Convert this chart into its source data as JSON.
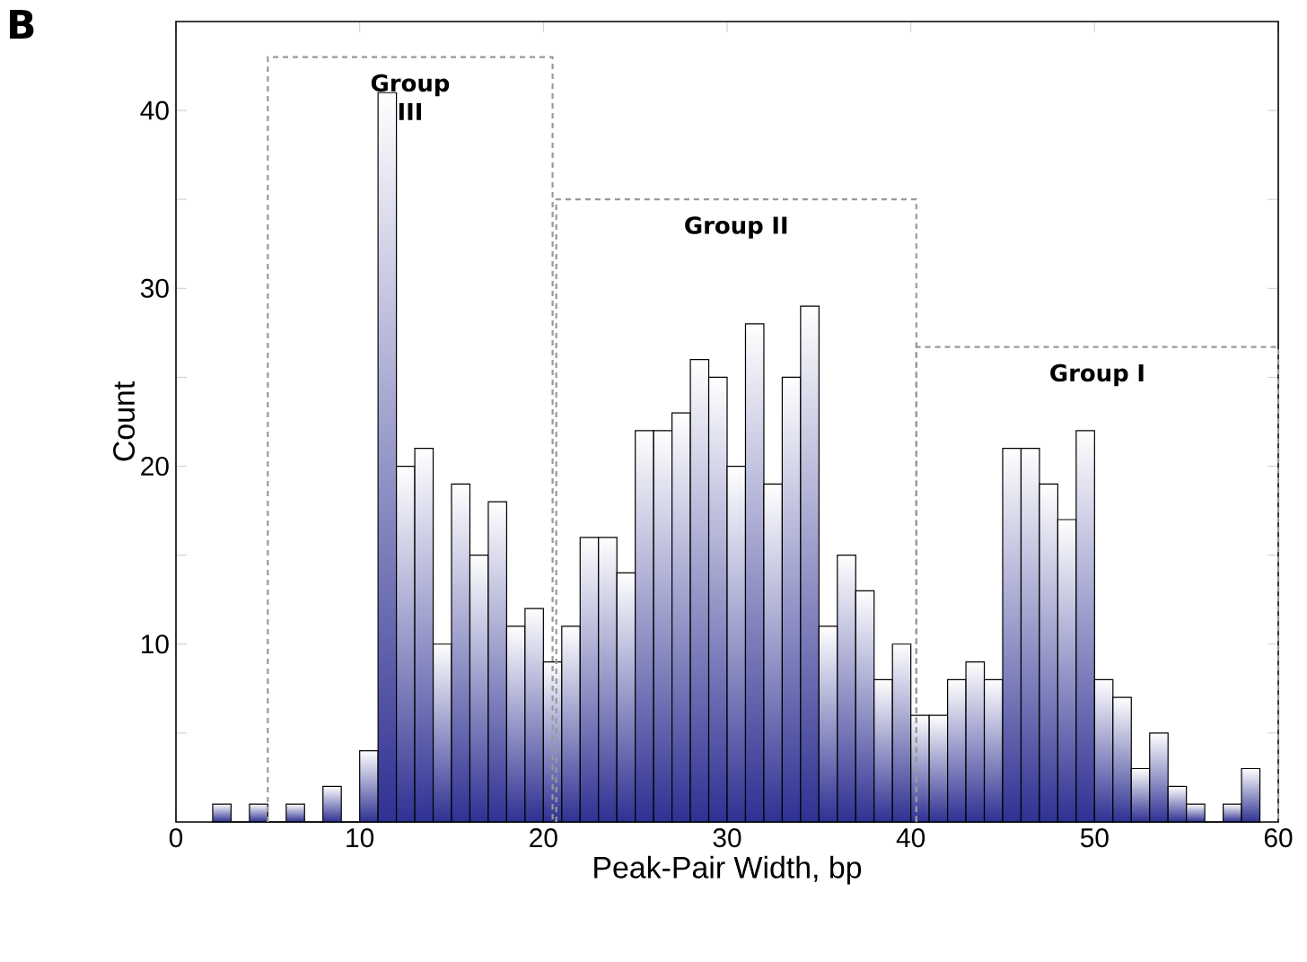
{
  "chart_data": {
    "type": "histogram",
    "xlabel": "Peak-Pair Width, bp",
    "ylabel": "Count",
    "color": "#2e3192",
    "bins": [
      2,
      3,
      4,
      5,
      6,
      7,
      8,
      9,
      10,
      11,
      12,
      13,
      14,
      15,
      16,
      17,
      18,
      19,
      20,
      21,
      22,
      23,
      24,
      25,
      26,
      27,
      28,
      29,
      30,
      31,
      32,
      33,
      34,
      35,
      36,
      37,
      38,
      39,
      40,
      41,
      42,
      43,
      44,
      45,
      46,
      47,
      48,
      49,
      50,
      51,
      52,
      53,
      54,
      55,
      56,
      57,
      58,
      59
    ],
    "values": [
      1,
      0,
      1,
      0,
      1,
      0,
      2,
      0,
      4,
      41,
      20,
      21,
      10,
      19,
      15,
      18,
      11,
      12,
      9,
      11,
      16,
      16,
      14,
      22,
      22,
      23,
      26,
      25,
      20,
      28,
      19,
      25,
      29,
      11,
      15,
      13,
      8,
      10,
      6,
      6,
      8,
      9,
      8,
      21,
      21,
      19,
      17,
      22,
      8,
      7,
      3,
      5,
      2,
      1,
      0,
      1,
      3
    ],
    "series": [
      {
        "type": "line",
        "color": "#999999",
        "line_style": "dashed",
        "x": [
          5,
          5,
          20.5,
          20.5
        ],
        "values": [
          0,
          43,
          43,
          0
        ]
      },
      {
        "type": "line",
        "color": "#999999",
        "line_style": "dashed",
        "x": [
          20.7,
          20.7,
          40.3,
          40.3
        ],
        "values": [
          0,
          35,
          35,
          0
        ]
      },
      {
        "type": "line",
        "color": "#999999",
        "line_style": "dashed",
        "x": [
          40.3,
          40.3,
          60,
          60
        ],
        "values": [
          0,
          26.7,
          26.7,
          0
        ]
      }
    ],
    "xlim": [
      0,
      60
    ],
    "ylim": [
      0,
      45
    ],
    "xticks": [
      0,
      10,
      20,
      30,
      40,
      50,
      60
    ],
    "yticks": [
      {
        "value": 5,
        "label": null
      },
      10,
      {
        "value": 15,
        "label": null
      },
      20,
      {
        "value": 25,
        "label": null
      },
      30,
      {
        "value": 35,
        "label": null
      },
      40
    ],
    "annotations": [
      "Group III",
      "Group II",
      "Group I",
      "B"
    ]
  }
}
